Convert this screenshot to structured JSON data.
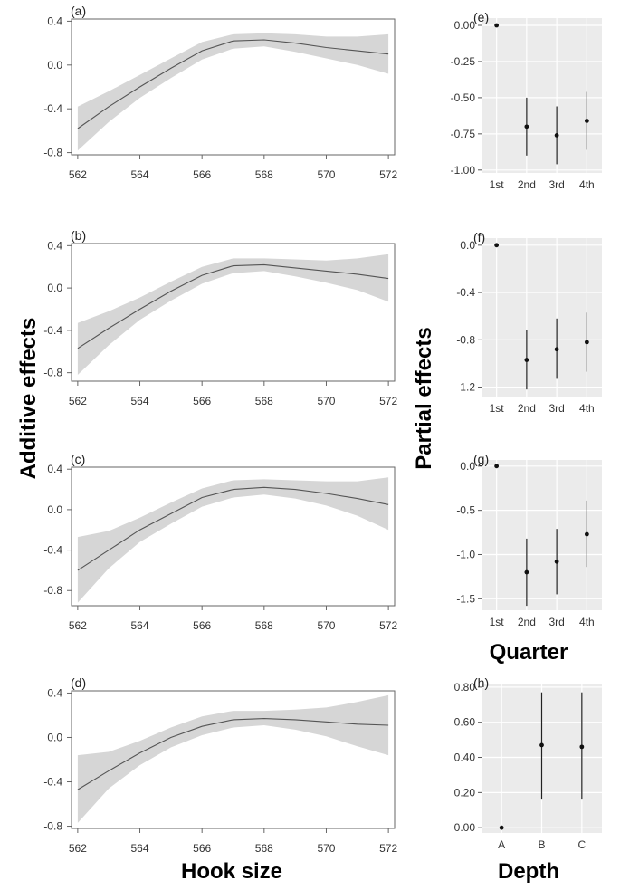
{
  "labels": {
    "left_ylabel": "Additive effects",
    "left_xlabel": "Hook size",
    "right_ylabel": "Partial effects",
    "quarter_xlabel": "Quarter",
    "depth_xlabel": "Depth"
  },
  "chart_data": [
    {
      "panel": "(a)",
      "type": "line",
      "x": [
        562,
        563,
        564,
        565,
        566,
        567,
        568,
        569,
        570,
        571,
        572
      ],
      "y": [
        -0.58,
        -0.38,
        -0.2,
        -0.03,
        0.13,
        0.22,
        0.23,
        0.2,
        0.16,
        0.13,
        0.1
      ],
      "lower": [
        -0.78,
        -0.52,
        -0.3,
        -0.12,
        0.05,
        0.15,
        0.17,
        0.12,
        0.06,
        0.0,
        -0.08
      ],
      "upper": [
        -0.38,
        -0.24,
        -0.09,
        0.06,
        0.21,
        0.28,
        0.29,
        0.28,
        0.26,
        0.26,
        0.28
      ],
      "xticks": [
        "562",
        "564",
        "566",
        "568",
        "570",
        "572"
      ],
      "yticks": [
        "0.4",
        "0.0",
        "-0.4",
        "-0.8"
      ],
      "xlim": [
        561.8,
        572.2
      ],
      "ylim": [
        -0.82,
        0.42
      ]
    },
    {
      "panel": "(b)",
      "type": "line",
      "x": [
        562,
        563,
        564,
        565,
        566,
        567,
        568,
        569,
        570,
        571,
        572
      ],
      "y": [
        -0.57,
        -0.38,
        -0.2,
        -0.03,
        0.12,
        0.21,
        0.22,
        0.19,
        0.16,
        0.13,
        0.09
      ],
      "lower": [
        -0.82,
        -0.54,
        -0.3,
        -0.12,
        0.04,
        0.14,
        0.16,
        0.11,
        0.05,
        -0.02,
        -0.13
      ],
      "upper": [
        -0.33,
        -0.22,
        -0.09,
        0.06,
        0.2,
        0.28,
        0.28,
        0.27,
        0.26,
        0.28,
        0.32
      ],
      "xticks": [
        "562",
        "564",
        "566",
        "568",
        "570",
        "572"
      ],
      "yticks": [
        "0.4",
        "0.0",
        "-0.4",
        "-0.8"
      ],
      "xlim": [
        561.8,
        572.2
      ],
      "ylim": [
        -0.88,
        0.42
      ]
    },
    {
      "panel": "(c)",
      "type": "line",
      "x": [
        562,
        563,
        564,
        565,
        566,
        567,
        568,
        569,
        570,
        571,
        572
      ],
      "y": [
        -0.6,
        -0.4,
        -0.2,
        -0.04,
        0.12,
        0.2,
        0.22,
        0.2,
        0.16,
        0.11,
        0.05
      ],
      "lower": [
        -0.92,
        -0.58,
        -0.32,
        -0.14,
        0.03,
        0.12,
        0.15,
        0.11,
        0.04,
        -0.06,
        -0.2
      ],
      "upper": [
        -0.27,
        -0.21,
        -0.08,
        0.07,
        0.21,
        0.29,
        0.3,
        0.29,
        0.28,
        0.28,
        0.32
      ],
      "xticks": [
        "562",
        "564",
        "566",
        "568",
        "570",
        "572"
      ],
      "yticks": [
        "0.4",
        "0.0",
        "-0.4",
        "-0.8"
      ],
      "xlim": [
        561.8,
        572.2
      ],
      "ylim": [
        -0.95,
        0.42
      ]
    },
    {
      "panel": "(d)",
      "type": "line",
      "x": [
        562,
        563,
        564,
        565,
        566,
        567,
        568,
        569,
        570,
        571,
        572
      ],
      "y": [
        -0.47,
        -0.3,
        -0.14,
        0.0,
        0.1,
        0.16,
        0.17,
        0.16,
        0.14,
        0.12,
        0.11
      ],
      "lower": [
        -0.77,
        -0.46,
        -0.25,
        -0.09,
        0.02,
        0.09,
        0.11,
        0.07,
        0.01,
        -0.08,
        -0.16
      ],
      "upper": [
        -0.16,
        -0.13,
        -0.03,
        0.09,
        0.19,
        0.24,
        0.24,
        0.25,
        0.27,
        0.32,
        0.38
      ],
      "xticks": [
        "562",
        "564",
        "566",
        "568",
        "570",
        "572"
      ],
      "yticks": [
        "0.4",
        "0.0",
        "-0.4",
        "-0.8"
      ],
      "xlim": [
        561.8,
        572.2
      ],
      "ylim": [
        -0.82,
        0.42
      ]
    },
    {
      "panel": "(e)",
      "type": "scatter",
      "categories": [
        "1st",
        "2nd",
        "3rd",
        "4th"
      ],
      "values": [
        0.0,
        -0.7,
        -0.76,
        -0.66
      ],
      "lower": [
        0.0,
        -0.9,
        -0.96,
        -0.86
      ],
      "upper": [
        0.0,
        -0.5,
        -0.56,
        -0.46
      ],
      "yticks": [
        "0.00",
        "-0.25",
        "-0.50",
        "-0.75",
        "-1.00"
      ],
      "ylim": [
        -1.02,
        0.05
      ]
    },
    {
      "panel": "(f)",
      "type": "scatter",
      "categories": [
        "1st",
        "2nd",
        "3rd",
        "4th"
      ],
      "values": [
        0.0,
        -0.97,
        -0.88,
        -0.82
      ],
      "lower": [
        0.0,
        -1.22,
        -1.13,
        -1.07
      ],
      "upper": [
        0.0,
        -0.72,
        -0.62,
        -0.57
      ],
      "yticks": [
        "0.0",
        "-0.4",
        "-0.8",
        "-1.2"
      ],
      "ylim": [
        -1.28,
        0.06
      ]
    },
    {
      "panel": "(g)",
      "type": "scatter",
      "categories": [
        "1st",
        "2nd",
        "3rd",
        "4th"
      ],
      "values": [
        0.0,
        -1.2,
        -1.08,
        -0.77
      ],
      "lower": [
        0.0,
        -1.58,
        -1.45,
        -1.14
      ],
      "upper": [
        0.0,
        -0.82,
        -0.71,
        -0.39
      ],
      "yticks": [
        "0.0",
        "-0.5",
        "-1.0",
        "-1.5"
      ],
      "ylim": [
        -1.63,
        0.07
      ]
    },
    {
      "panel": "(h)",
      "type": "scatter",
      "categories": [
        "A",
        "B",
        "C"
      ],
      "values": [
        0.0,
        0.47,
        0.46
      ],
      "lower": [
        0.0,
        0.16,
        0.16
      ],
      "upper": [
        0.0,
        0.77,
        0.77
      ],
      "yticks": [
        "0.80",
        "0.60",
        "0.40",
        "0.20",
        "0.00"
      ],
      "ylim": [
        -0.03,
        0.82
      ]
    }
  ]
}
